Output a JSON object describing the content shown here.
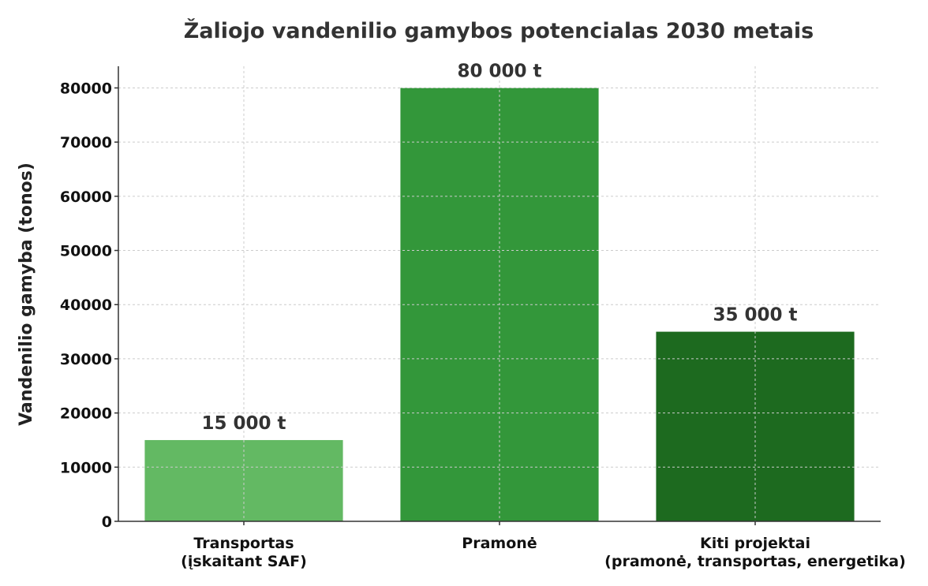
{
  "chart_data": {
    "type": "bar",
    "title": "Žaliojo vandenilio gamybos potencialas 2030 metais",
    "xlabel": "",
    "ylabel": "Vandenilio gamyba (tonos)",
    "categories": [
      [
        "Transportas",
        "(įskaitant SAF)"
      ],
      [
        "Pramonė"
      ],
      [
        "Kiti projektai",
        "(pramonė, transportas, energetika)"
      ]
    ],
    "values": [
      15000,
      80000,
      35000
    ],
    "data_labels": [
      "15 000 t",
      "80 000 t",
      "35 000 t"
    ],
    "colors": [
      "#63b963",
      "#33973a",
      "#1d6a1f"
    ],
    "ylim": [
      0,
      84000
    ],
    "yticks": [
      0,
      10000,
      20000,
      30000,
      40000,
      50000,
      60000,
      70000,
      80000
    ],
    "grid": true,
    "legend": "none"
  }
}
